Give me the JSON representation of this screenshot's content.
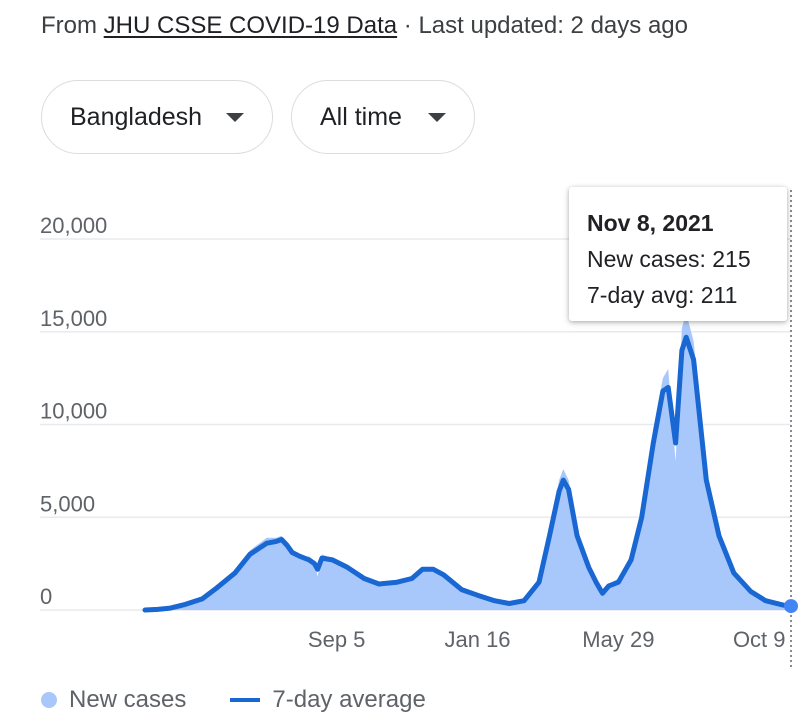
{
  "source": {
    "prefix": "From",
    "link_text": "JHU CSSE COVID-19 Data",
    "separator": "·",
    "updated": "Last updated: 2 days ago"
  },
  "filters": {
    "location": "Bangladesh",
    "range": "All time"
  },
  "tooltip": {
    "date": "Nov 8, 2021",
    "new_cases": "New cases: 215",
    "avg": "7-day avg: 211"
  },
  "legend": {
    "new_cases": "New cases",
    "avg": "7-day average"
  },
  "colors": {
    "bars": "#a8c7fa",
    "line": "#1967d2",
    "grid": "#e8eaed"
  },
  "chart_data": {
    "type": "area",
    "title": "",
    "xlabel": "",
    "ylabel": "",
    "ylim": [
      0,
      20000
    ],
    "y_ticks": [
      0,
      5000,
      10000,
      15000,
      20000
    ],
    "y_tick_labels": [
      "0",
      "5,000",
      "10,000",
      "15,000",
      "20,000"
    ],
    "x_ticks": [
      {
        "date": "2020-09-05",
        "label": "Sep 5"
      },
      {
        "date": "2021-01-16",
        "label": "Jan 16"
      },
      {
        "date": "2021-05-29",
        "label": "May 29"
      },
      {
        "date": "2021-10-09",
        "label": "Oct 9"
      }
    ],
    "grid": true,
    "legend_position": "bottom-left",
    "highlight": {
      "date": "2021-11-08",
      "new_cases": 215,
      "avg": 211
    },
    "series": [
      {
        "name": "7-day average",
        "points": [
          [
            "2020-03-08",
            0
          ],
          [
            "2020-03-20",
            30
          ],
          [
            "2020-04-01",
            100
          ],
          [
            "2020-04-15",
            300
          ],
          [
            "2020-05-01",
            600
          ],
          [
            "2020-05-15",
            1200
          ],
          [
            "2020-06-01",
            2000
          ],
          [
            "2020-06-15",
            3000
          ],
          [
            "2020-07-01",
            3600
          ],
          [
            "2020-07-10",
            3700
          ],
          [
            "2020-07-15",
            3800
          ],
          [
            "2020-07-20",
            3500
          ],
          [
            "2020-07-25",
            3100
          ],
          [
            "2020-08-01",
            2900
          ],
          [
            "2020-08-10",
            2700
          ],
          [
            "2020-08-15",
            2500
          ],
          [
            "2020-08-18",
            2200
          ],
          [
            "2020-08-22",
            2800
          ],
          [
            "2020-09-01",
            2700
          ],
          [
            "2020-09-15",
            2300
          ],
          [
            "2020-10-01",
            1700
          ],
          [
            "2020-10-15",
            1400
          ],
          [
            "2020-11-01",
            1500
          ],
          [
            "2020-11-15",
            1700
          ],
          [
            "2020-11-25",
            2200
          ],
          [
            "2020-12-05",
            2200
          ],
          [
            "2020-12-15",
            1900
          ],
          [
            "2021-01-01",
            1100
          ],
          [
            "2021-01-16",
            800
          ],
          [
            "2021-02-01",
            500
          ],
          [
            "2021-02-15",
            350
          ],
          [
            "2021-03-01",
            500
          ],
          [
            "2021-03-15",
            1500
          ],
          [
            "2021-03-25",
            4000
          ],
          [
            "2021-04-03",
            6400
          ],
          [
            "2021-04-07",
            7000
          ],
          [
            "2021-04-12",
            6500
          ],
          [
            "2021-04-20",
            4000
          ],
          [
            "2021-05-01",
            2300
          ],
          [
            "2021-05-08",
            1500
          ],
          [
            "2021-05-14",
            900
          ],
          [
            "2021-05-20",
            1300
          ],
          [
            "2021-05-29",
            1500
          ],
          [
            "2021-06-10",
            2700
          ],
          [
            "2021-06-20",
            5000
          ],
          [
            "2021-07-01",
            9000
          ],
          [
            "2021-07-10",
            11800
          ],
          [
            "2021-07-15",
            12000
          ],
          [
            "2021-07-22",
            9000
          ],
          [
            "2021-07-28",
            14000
          ],
          [
            "2021-08-01",
            14700
          ],
          [
            "2021-08-08",
            13500
          ],
          [
            "2021-08-20",
            7000
          ],
          [
            "2021-09-01",
            4000
          ],
          [
            "2021-09-15",
            2000
          ],
          [
            "2021-10-01",
            1000
          ],
          [
            "2021-10-15",
            500
          ],
          [
            "2021-11-01",
            260
          ],
          [
            "2021-11-08",
            211
          ]
        ]
      },
      {
        "name": "New cases",
        "points": [
          [
            "2020-03-08",
            0
          ],
          [
            "2020-03-20",
            30
          ],
          [
            "2020-04-01",
            110
          ],
          [
            "2020-04-15",
            320
          ],
          [
            "2020-05-01",
            650
          ],
          [
            "2020-05-15",
            1300
          ],
          [
            "2020-06-01",
            2100
          ],
          [
            "2020-06-15",
            3200
          ],
          [
            "2020-07-01",
            3900
          ],
          [
            "2020-07-10",
            3900
          ],
          [
            "2020-07-15",
            4000
          ],
          [
            "2020-07-20",
            3600
          ],
          [
            "2020-07-25",
            3200
          ],
          [
            "2020-08-01",
            2800
          ],
          [
            "2020-08-10",
            2900
          ],
          [
            "2020-08-15",
            2600
          ],
          [
            "2020-08-18",
            1800
          ],
          [
            "2020-08-22",
            3000
          ],
          [
            "2020-09-01",
            2800
          ],
          [
            "2020-09-15",
            2400
          ],
          [
            "2020-10-01",
            1800
          ],
          [
            "2020-10-15",
            1500
          ],
          [
            "2020-11-01",
            1600
          ],
          [
            "2020-11-15",
            1800
          ],
          [
            "2020-11-25",
            2300
          ],
          [
            "2020-12-05",
            2300
          ],
          [
            "2020-12-15",
            2000
          ],
          [
            "2021-01-01",
            1200
          ],
          [
            "2021-01-16",
            850
          ],
          [
            "2021-02-01",
            550
          ],
          [
            "2021-02-15",
            400
          ],
          [
            "2021-03-01",
            600
          ],
          [
            "2021-03-15",
            1700
          ],
          [
            "2021-03-25",
            4300
          ],
          [
            "2021-04-03",
            7000
          ],
          [
            "2021-04-07",
            7600
          ],
          [
            "2021-04-12",
            7000
          ],
          [
            "2021-04-20",
            4300
          ],
          [
            "2021-05-01",
            2500
          ],
          [
            "2021-05-08",
            1700
          ],
          [
            "2021-05-14",
            1000
          ],
          [
            "2021-05-20",
            1400
          ],
          [
            "2021-05-29",
            1700
          ],
          [
            "2021-06-10",
            3000
          ],
          [
            "2021-06-20",
            5500
          ],
          [
            "2021-07-01",
            9800
          ],
          [
            "2021-07-10",
            12500
          ],
          [
            "2021-07-15",
            13000
          ],
          [
            "2021-07-22",
            8000
          ],
          [
            "2021-07-28",
            15200
          ],
          [
            "2021-08-01",
            16000
          ],
          [
            "2021-08-08",
            14500
          ],
          [
            "2021-08-20",
            7500
          ],
          [
            "2021-09-01",
            4200
          ],
          [
            "2021-09-15",
            2200
          ],
          [
            "2021-10-01",
            1100
          ],
          [
            "2021-10-15",
            550
          ],
          [
            "2021-11-01",
            280
          ],
          [
            "2021-11-08",
            215
          ]
        ]
      }
    ]
  }
}
